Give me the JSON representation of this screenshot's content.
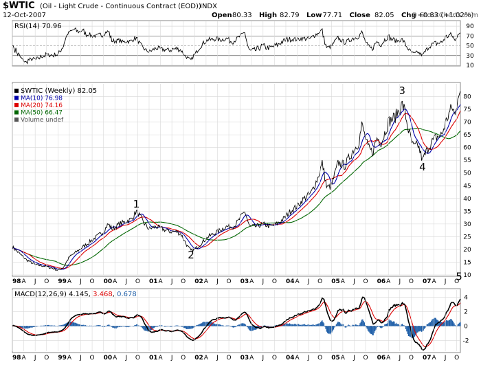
{
  "header": {
    "symbol": "$WTIC",
    "description": "(Oil - Light Crude - Continuous Contract (EOD))",
    "exchange": "INDX",
    "date": "12-Oct-2007",
    "ohlc": [
      {
        "label": "Open",
        "value": "80.33"
      },
      {
        "label": "High",
        "value": "82.79"
      },
      {
        "label": "Low",
        "value": "77.71"
      },
      {
        "label": "Close",
        "value": "82.05"
      },
      {
        "label": "Chg",
        "value": "+0.83 (+1.02%)"
      }
    ],
    "copyright": "© StockCharts.com"
  },
  "colors": {
    "price": "#000000",
    "ma10": "#0000aa",
    "ma20": "#dd0000",
    "ma50": "#006600",
    "macd": "#000000",
    "signal": "#dd0000",
    "histogram": "#1f5fa8",
    "grid": "#d8d8d8",
    "frame": "#888888"
  },
  "chart_data": [
    {
      "type": "line",
      "name": "rsi",
      "title": "RSI(14)",
      "value_label": "70.96",
      "ylim": [
        10,
        100
      ],
      "ticks": [
        10,
        30,
        50,
        70,
        90
      ],
      "overbought": 70,
      "oversold": 30,
      "mid": 50
    },
    {
      "type": "line",
      "name": "price",
      "title": "$WTIC (Weekly)",
      "value_label": "82.05",
      "ylim": [
        10,
        85
      ],
      "ticks": [
        10,
        15,
        20,
        25,
        30,
        35,
        40,
        45,
        50,
        55,
        60,
        65,
        70,
        75,
        80
      ],
      "legend": [
        {
          "key": "price",
          "label": "$WTIC (Weekly) 82.05"
        },
        {
          "key": "ma10",
          "label": "MA(10) 76.98"
        },
        {
          "key": "ma20",
          "label": "MA(20) 74.16"
        },
        {
          "key": "ma50",
          "label": "MA(50) 66.47"
        },
        {
          "key": "volume",
          "label": "Volume undef"
        }
      ],
      "anchors": [
        [
          1998.0,
          21
        ],
        [
          1998.12,
          19
        ],
        [
          1998.3,
          16
        ],
        [
          1998.5,
          14
        ],
        [
          1998.7,
          13.5
        ],
        [
          1998.9,
          12.5
        ],
        [
          1999.0,
          11.8
        ],
        [
          1999.12,
          13
        ],
        [
          1999.25,
          17
        ],
        [
          1999.4,
          19
        ],
        [
          1999.55,
          21
        ],
        [
          1999.7,
          23
        ],
        [
          1999.85,
          25
        ],
        [
          2000.0,
          27
        ],
        [
          2000.1,
          30
        ],
        [
          2000.2,
          28
        ],
        [
          2000.35,
          30
        ],
        [
          2000.5,
          31
        ],
        [
          2000.62,
          32
        ],
        [
          2000.72,
          35
        ],
        [
          2000.8,
          33
        ],
        [
          2000.9,
          30
        ],
        [
          2001.0,
          28
        ],
        [
          2001.15,
          29
        ],
        [
          2001.3,
          28
        ],
        [
          2001.45,
          27
        ],
        [
          2001.6,
          27
        ],
        [
          2001.7,
          26
        ],
        [
          2001.85,
          21
        ],
        [
          2001.92,
          19.5
        ],
        [
          2002.0,
          20
        ],
        [
          2002.12,
          22
        ],
        [
          2002.3,
          25
        ],
        [
          2002.5,
          27
        ],
        [
          2002.7,
          29
        ],
        [
          2002.85,
          29
        ],
        [
          2002.95,
          31
        ],
        [
          2003.1,
          35
        ],
        [
          2003.2,
          29
        ],
        [
          2003.35,
          29
        ],
        [
          2003.5,
          30
        ],
        [
          2003.65,
          29
        ],
        [
          2003.8,
          30
        ],
        [
          2003.95,
          32
        ],
        [
          2004.1,
          35
        ],
        [
          2004.25,
          37
        ],
        [
          2004.4,
          40
        ],
        [
          2004.55,
          42
        ],
        [
          2004.7,
          48
        ],
        [
          2004.8,
          54
        ],
        [
          2004.9,
          44
        ],
        [
          2005.0,
          45
        ],
        [
          2005.15,
          54
        ],
        [
          2005.3,
          53
        ],
        [
          2005.45,
          58
        ],
        [
          2005.6,
          62
        ],
        [
          2005.67,
          69
        ],
        [
          2005.8,
          60
        ],
        [
          2005.9,
          58
        ],
        [
          2006.0,
          64
        ],
        [
          2006.1,
          62
        ],
        [
          2006.25,
          70
        ],
        [
          2006.4,
          72
        ],
        [
          2006.55,
          77
        ],
        [
          2006.6,
          75
        ],
        [
          2006.7,
          66
        ],
        [
          2006.8,
          60
        ],
        [
          2006.9,
          61
        ],
        [
          2007.0,
          55
        ],
        [
          2007.05,
          57
        ],
        [
          2007.15,
          61
        ],
        [
          2007.3,
          64
        ],
        [
          2007.42,
          65
        ],
        [
          2007.55,
          72
        ],
        [
          2007.65,
          76
        ],
        [
          2007.72,
          72
        ],
        [
          2007.78,
          82
        ],
        [
          2007.79,
          82.05
        ]
      ]
    },
    {
      "type": "line",
      "name": "macd",
      "title": "MACD(12,26,9)",
      "values": [
        "4.145",
        "3.468",
        "0.678"
      ],
      "ylim": [
        -3.5,
        5
      ],
      "ticks": [
        -2,
        0,
        2,
        4
      ]
    }
  ],
  "annotations": [
    {
      "label": "1",
      "x": 2000.72,
      "y": 36.5
    },
    {
      "label": "2",
      "x": 2001.92,
      "y": 16.5
    },
    {
      "label": "3",
      "x": 2006.55,
      "y": 81
    },
    {
      "label": "4",
      "x": 2007.0,
      "y": 51
    },
    {
      "label": "5",
      "x": 2007.8,
      "y": 8
    }
  ],
  "x_axis": {
    "start": 1998.0,
    "end": 2007.83,
    "month_labels": [
      "A",
      "J",
      "O"
    ],
    "years": [
      {
        "t": 1998.0,
        "label": "98"
      },
      {
        "t": 1999.0,
        "label": "99"
      },
      {
        "t": 2000.0,
        "label": "00"
      },
      {
        "t": 2001.0,
        "label": "01"
      },
      {
        "t": 2002.0,
        "label": "02"
      },
      {
        "t": 2003.0,
        "label": "03"
      },
      {
        "t": 2004.0,
        "label": "04"
      },
      {
        "t": 2005.0,
        "label": "05"
      },
      {
        "t": 2006.0,
        "label": "06"
      },
      {
        "t": 2007.0,
        "label": "07"
      }
    ]
  }
}
